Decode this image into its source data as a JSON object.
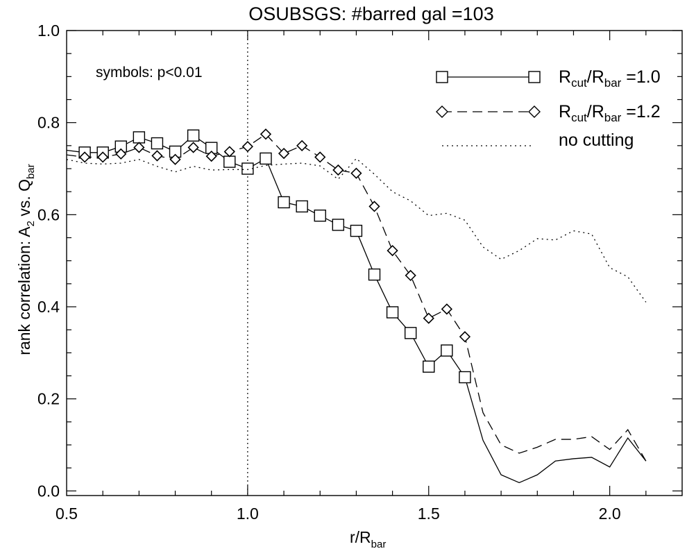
{
  "chart_data": {
    "type": "line",
    "title": "OSUBSGS:   #barred gal =103",
    "xlabel": {
      "main": "r/R",
      "sub": "bar"
    },
    "ylabel": {
      "pre": "rank correlation:  A",
      "sub1": "2",
      "mid": "  vs. Q",
      "sub2": "bar"
    },
    "xlim": [
      0.5,
      2.2
    ],
    "ylim": [
      -0.01,
      1.0
    ],
    "x_ticks": [
      0.5,
      1.0,
      1.5,
      2.0
    ],
    "x_tick_labels": [
      "0.5",
      "1.0",
      "1.5",
      "2.0"
    ],
    "y_ticks": [
      0.0,
      0.2,
      0.4,
      0.6,
      0.8,
      1.0
    ],
    "y_tick_labels": [
      "0.0",
      "0.2",
      "0.4",
      "0.6",
      "0.8",
      "1.0"
    ],
    "vline_x": 1.0,
    "annotation": "symbols: p<0.01",
    "series": [
      {
        "name": "R_cut/R_bar =1.0",
        "legend": {
          "a": "R",
          "a_sub": "cut",
          "b": "/R",
          "b_sub": "bar",
          "c": " =1.0"
        },
        "line_style": "solid",
        "marker": "square",
        "x": [
          0.5,
          0.55,
          0.6,
          0.65,
          0.7,
          0.75,
          0.8,
          0.85,
          0.9,
          0.95,
          1.0,
          1.05,
          1.1,
          1.15,
          1.2,
          1.25,
          1.3,
          1.35,
          1.4,
          1.45,
          1.5,
          1.55,
          1.6,
          1.65,
          1.7,
          1.75,
          1.8,
          1.85,
          1.9,
          1.95,
          2.0,
          2.05,
          2.1
        ],
        "y": [
          0.74,
          0.735,
          0.735,
          0.748,
          0.768,
          0.755,
          0.737,
          0.772,
          0.745,
          0.715,
          0.7,
          0.722,
          0.627,
          0.618,
          0.598,
          0.578,
          0.565,
          0.47,
          0.388,
          0.343,
          0.27,
          0.305,
          0.247,
          0.11,
          0.035,
          0.018,
          0.035,
          0.065,
          0.07,
          0.073,
          0.052,
          0.115,
          0.065
        ],
        "marker_x": [
          0.55,
          0.6,
          0.65,
          0.7,
          0.75,
          0.8,
          0.85,
          0.9,
          0.95,
          1.0,
          1.05,
          1.1,
          1.15,
          1.2,
          1.25,
          1.3,
          1.35,
          1.4,
          1.45,
          1.5,
          1.55,
          1.6
        ]
      },
      {
        "name": "R_cut/R_bar =1.2",
        "legend": {
          "a": "R",
          "a_sub": "cut",
          "b": "/R",
          "b_sub": "bar",
          "c": " =1.2"
        },
        "line_style": "dashed",
        "marker": "diamond",
        "x": [
          0.5,
          0.55,
          0.6,
          0.65,
          0.7,
          0.75,
          0.8,
          0.85,
          0.9,
          0.95,
          1.0,
          1.05,
          1.1,
          1.15,
          1.2,
          1.25,
          1.3,
          1.35,
          1.4,
          1.45,
          1.5,
          1.55,
          1.6,
          1.65,
          1.7,
          1.75,
          1.8,
          1.85,
          1.9,
          1.95,
          2.0,
          2.05,
          2.1
        ],
        "y": [
          0.73,
          0.725,
          0.725,
          0.732,
          0.746,
          0.728,
          0.72,
          0.746,
          0.727,
          0.737,
          0.748,
          0.775,
          0.733,
          0.75,
          0.725,
          0.697,
          0.69,
          0.618,
          0.522,
          0.468,
          0.375,
          0.395,
          0.335,
          0.17,
          0.1,
          0.082,
          0.095,
          0.112,
          0.112,
          0.118,
          0.09,
          0.133,
          0.065
        ],
        "marker_x": [
          0.55,
          0.6,
          0.65,
          0.7,
          0.75,
          0.8,
          0.85,
          0.9,
          0.95,
          1.0,
          1.05,
          1.1,
          1.15,
          1.2,
          1.25,
          1.3,
          1.35,
          1.4,
          1.45,
          1.5,
          1.55,
          1.6
        ]
      },
      {
        "name": "no cutting",
        "legend": {
          "a": "no cutting",
          "a_sub": "",
          "b": "",
          "b_sub": "",
          "c": ""
        },
        "line_style": "dotted",
        "marker": "none",
        "x": [
          0.5,
          0.55,
          0.6,
          0.65,
          0.7,
          0.75,
          0.8,
          0.85,
          0.9,
          0.95,
          1.0,
          1.05,
          1.1,
          1.15,
          1.2,
          1.25,
          1.3,
          1.35,
          1.4,
          1.45,
          1.5,
          1.55,
          1.6,
          1.65,
          1.7,
          1.75,
          1.8,
          1.85,
          1.9,
          1.95,
          2.0,
          2.05,
          2.1
        ],
        "y": [
          0.72,
          0.712,
          0.71,
          0.712,
          0.72,
          0.705,
          0.693,
          0.705,
          0.697,
          0.698,
          0.698,
          0.707,
          0.71,
          0.712,
          0.706,
          0.677,
          0.722,
          0.688,
          0.65,
          0.63,
          0.598,
          0.603,
          0.588,
          0.53,
          0.503,
          0.522,
          0.548,
          0.545,
          0.565,
          0.558,
          0.485,
          0.465,
          0.41
        ],
        "marker_x": []
      }
    ]
  }
}
